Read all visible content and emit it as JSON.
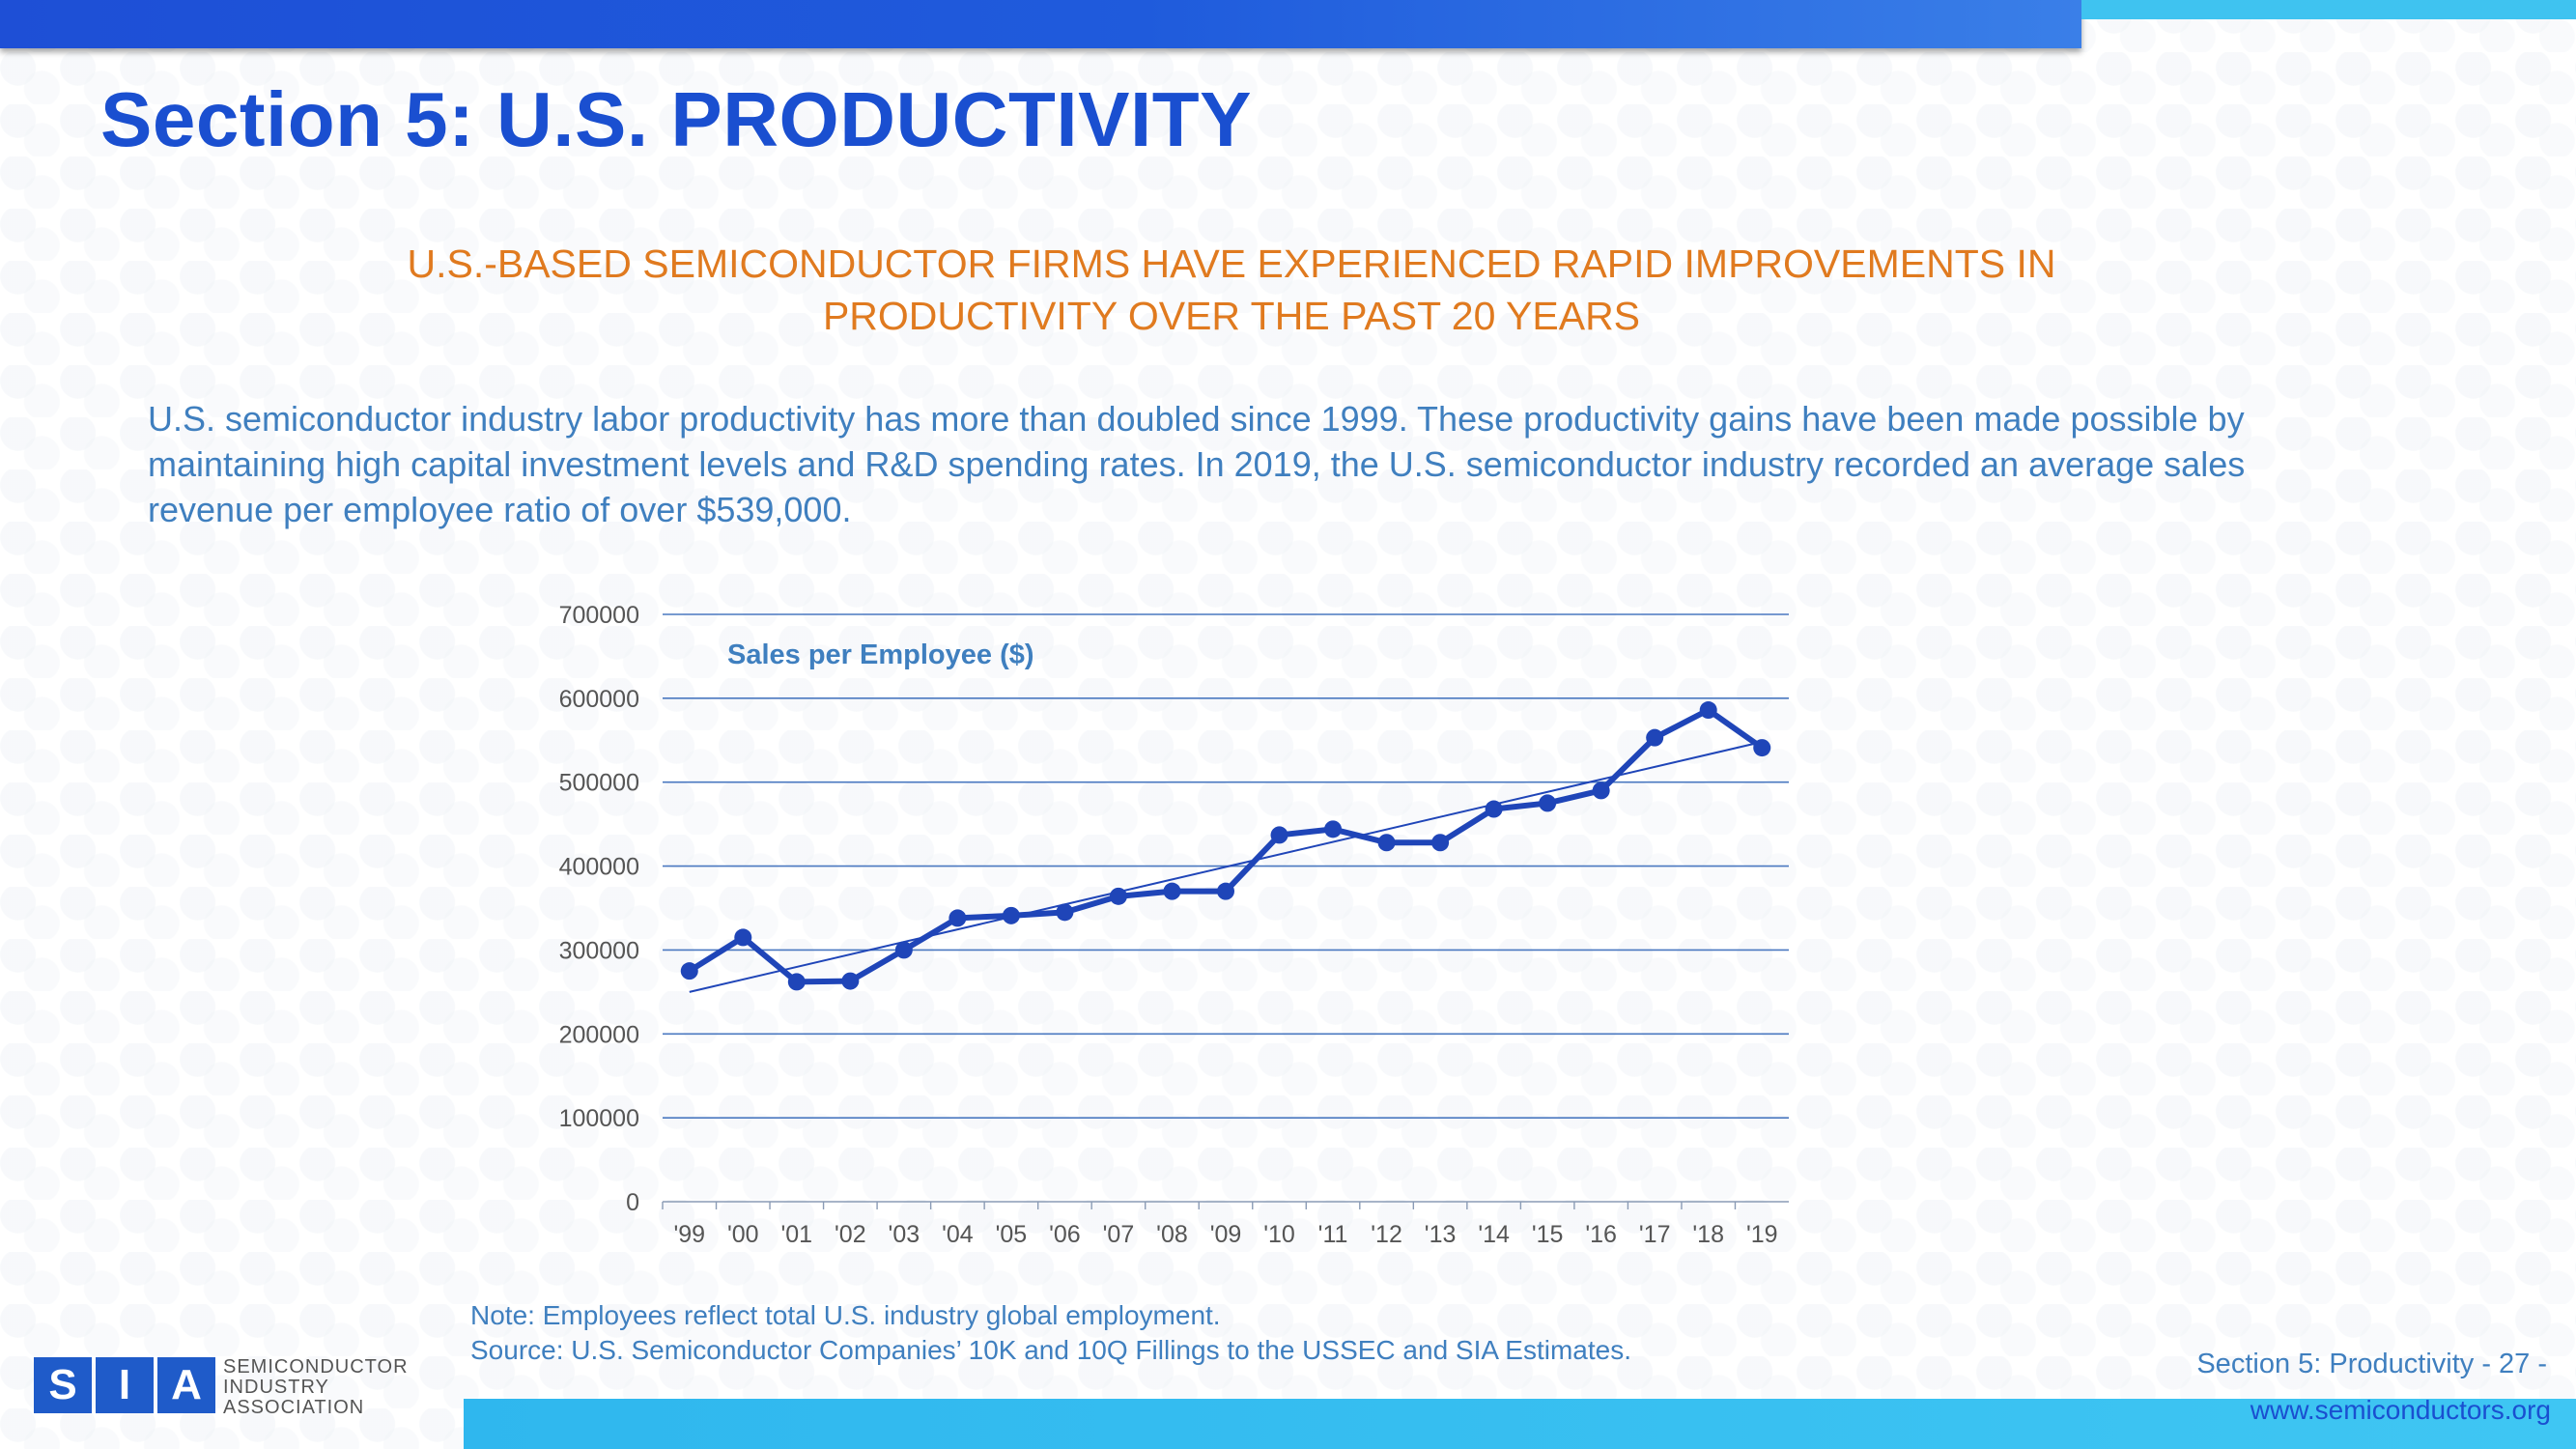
{
  "header": {
    "title": "Section 5: U.S. PRODUCTIVITY",
    "subtitle_line1": "U.S.-BASED SEMICONDUCTOR FIRMS HAVE EXPERIENCED RAPID IMPROVEMENTS IN",
    "subtitle_line2": "PRODUCTIVITY OVER THE PAST 20 YEARS"
  },
  "body": {
    "line1": "U.S. semiconductor industry labor productivity has more than doubled since 1999. These productivity gains have been made possible by",
    "line2": "maintaining high capital investment levels and R&D spending rates. In 2019, the U.S. semiconductor industry recorded an average sales",
    "line3": "revenue per employee ratio of over $539,000."
  },
  "chart_data": {
    "type": "line",
    "title": "Sales per Employee ($)",
    "categories": [
      "'99",
      "'00",
      "'01",
      "'02",
      "'03",
      "'04",
      "'05",
      "'06",
      "'07",
      "'08",
      "'09",
      "'10",
      "'11",
      "'12",
      "'13",
      "'14",
      "'15",
      "'16",
      "'17",
      "'18",
      "'19"
    ],
    "series": [
      {
        "values": [
          275000,
          315000,
          262000,
          263000,
          300000,
          338000,
          341000,
          345000,
          364000,
          370000,
          370000,
          437000,
          444000,
          428000,
          428000,
          468000,
          475000,
          490000,
          553000,
          586000,
          541000
        ]
      }
    ],
    "trendline": {
      "start": 250000,
      "end": 548000
    },
    "y_ticks": [
      "0",
      "100000",
      "200000",
      "300000",
      "400000",
      "500000",
      "600000",
      "700000"
    ],
    "ylim": [
      0,
      700000
    ],
    "grid": true,
    "colors": {
      "line": "#1f45b8",
      "grid": "#4a78c0",
      "label": "#3f7fbf"
    }
  },
  "footer": {
    "note": "Note: Employees reflect total U.S. industry global employment.",
    "source": "Source: U.S. Semiconductor Companies’ 10K and 10Q Fillings to the USSEC and SIA Estimates.",
    "page_label": "Section 5: Productivity - 27 -",
    "website": "www.semiconductors.org",
    "logo_letters": [
      "S",
      "I",
      "A"
    ],
    "logo_line1": "SEMICONDUCTOR",
    "logo_line2": "INDUSTRY",
    "logo_line3": "ASSOCIATION"
  }
}
